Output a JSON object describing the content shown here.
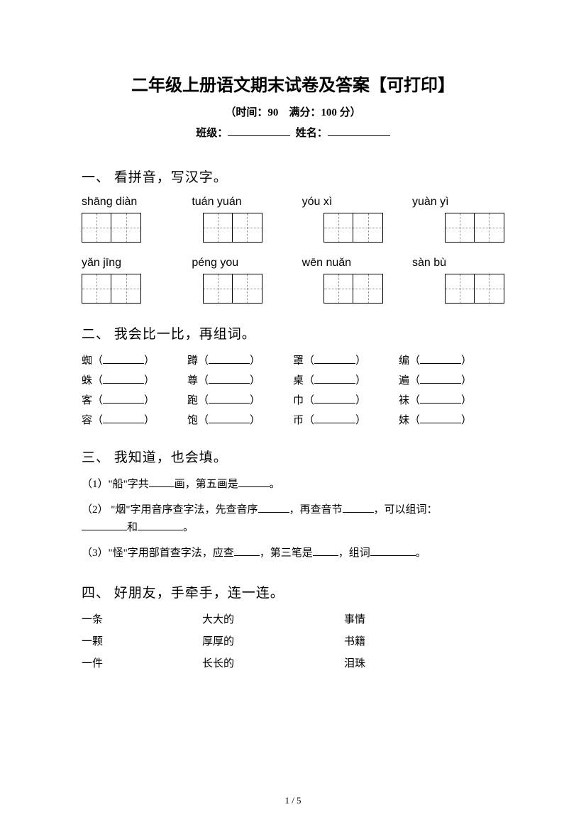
{
  "header": {
    "title": "二年级上册语文期末试卷及答案【可打印】",
    "subtitle": "（时间：90　满分：100 分）",
    "class_label": "班级：",
    "name_label": "姓名："
  },
  "section1": {
    "heading": "一、 看拼音，写汉字。",
    "row1": [
      "shāng diàn",
      "tuán yuán",
      "yóu xì",
      "yuàn   yì"
    ],
    "row2": [
      "yǎn   jīng",
      "péng you",
      "wēn nuǎn",
      "sàn    bù"
    ]
  },
  "section2": {
    "heading": "二、 我会比一比，再组词。",
    "rows": [
      [
        "蜘",
        "蹲",
        "罩",
        "编"
      ],
      [
        "蛛",
        "尊",
        "桌",
        "遍"
      ],
      [
        "客",
        "跑",
        "巾",
        "袜"
      ],
      [
        "容",
        "饱",
        "币",
        "妹"
      ]
    ]
  },
  "section3": {
    "heading": "三、 我知道，也会填。",
    "q1_a": "（1）\"船\"字共",
    "q1_b": "画，第五画是",
    "q1_c": "。",
    "q2_a": "（2） \"烟\"字用音序查字法，先查音序",
    "q2_b": "，再查音节",
    "q2_c": "，可以组词：",
    "q2_d": "和",
    "q2_e": "。",
    "q3_a": "（3）\"怪\"字用部首查字法，应查",
    "q3_b": "，第三笔是",
    "q3_c": "，组词",
    "q3_d": "。"
  },
  "section4": {
    "heading": "四、 好朋友，手牵手，连一连。",
    "rows": [
      [
        "一条",
        "大大的",
        "事情"
      ],
      [
        "一颗",
        "厚厚的",
        "书籍"
      ],
      [
        "一件",
        "长长的",
        "泪珠"
      ]
    ]
  },
  "page_num": "1 / 5"
}
